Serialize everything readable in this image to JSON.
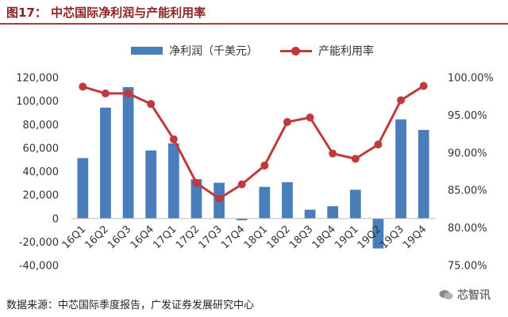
{
  "figure": {
    "title": "图17：  中芯国际净利润与产能利用率",
    "source": "数据来源：中芯国际季度报告，广发证券发展研究中心",
    "watermark": "芯智讯"
  },
  "colors": {
    "bar": "#4a7ebb",
    "line": "#c0393b",
    "title": "#8b2323"
  },
  "chart_data": {
    "type": "bar+line",
    "categories": [
      "16Q1",
      "16Q2",
      "16Q3",
      "16Q4",
      "17Q1",
      "17Q2",
      "17Q3",
      "17Q4",
      "18Q1",
      "18Q2",
      "18Q3",
      "18Q4",
      "19Q1",
      "19Q2",
      "19Q3",
      "19Q4"
    ],
    "series": [
      {
        "name": "净利润（千美元）",
        "type": "bar",
        "axis": "left",
        "values": [
          51500,
          94500,
          112000,
          58000,
          64000,
          33500,
          30500,
          -1500,
          27000,
          31000,
          7500,
          10500,
          24500,
          -25500,
          84500,
          75500
        ]
      },
      {
        "name": "产能利用率",
        "type": "line",
        "axis": "right",
        "values": [
          98.8,
          97.9,
          97.9,
          96.5,
          91.8,
          86.0,
          83.9,
          85.8,
          88.3,
          94.1,
          94.7,
          89.9,
          89.2,
          91.1,
          97.0,
          98.9
        ]
      }
    ],
    "y_left": {
      "min": -40000,
      "max": 120000,
      "step": 20000,
      "tick_labels": [
        "-40,000",
        "-20,000",
        "0",
        "20,000",
        "40,000",
        "60,000",
        "80,000",
        "100,000",
        "120,000"
      ]
    },
    "y_right": {
      "min": 75,
      "max": 100,
      "step": 5,
      "tick_labels": [
        "75.00%",
        "80.00%",
        "85.00%",
        "90.00%",
        "95.00%",
        "100.00%"
      ]
    },
    "legend": {
      "placement": "top-center"
    },
    "grid": false
  }
}
